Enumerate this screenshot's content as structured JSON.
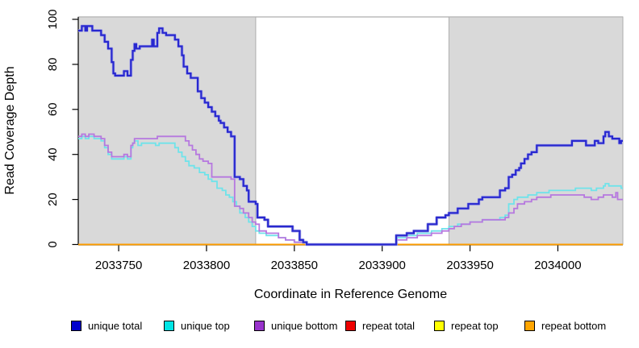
{
  "figure": {
    "x_axis_title": "Coordinate in Reference Genome",
    "y_axis_title": "Read Coverage Depth"
  },
  "chart_data": {
    "type": "line",
    "subtype": "step",
    "title": "",
    "xlabel": "Coordinate in Reference Genome",
    "ylabel": "Read Coverage Depth",
    "xlim": [
      2033727,
      2034037
    ],
    "ylim": [
      0,
      100
    ],
    "x_ticks": [
      2033750,
      2033800,
      2033850,
      2033900,
      2033950,
      2034000
    ],
    "y_ticks": [
      0,
      20,
      40,
      60,
      80,
      100
    ],
    "grid": false,
    "plot": {
      "band_fill": "#D9D9D9",
      "band_stroke": "#ADADAD",
      "axis_color": "#000000",
      "shaded_regions": [
        {
          "name": "left-gray-band",
          "x0": 2033727,
          "x1": 2033828
        },
        {
          "name": "right-gray-band",
          "x0": 2033938,
          "x1": 2034037
        }
      ],
      "white_gap": {
        "x0": 2033828,
        "x1": 2033938
      }
    },
    "legend": {
      "position": "bottom",
      "entries": [
        {
          "label": "unique total",
          "color": "#0000CC"
        },
        {
          "label": "unique top",
          "color": "#00E5E5"
        },
        {
          "label": "unique bottom",
          "color": "#9933CC"
        },
        {
          "label": "repeat total",
          "color": "#EE0000"
        },
        {
          "label": "repeat top",
          "color": "#FFFF00"
        },
        {
          "label": "repeat bottom",
          "color": "#FFA500"
        }
      ]
    },
    "series": [
      {
        "name": "repeat total",
        "color": "#DD0000",
        "width": 1.5,
        "points": [
          [
            2033727,
            0
          ],
          [
            2034037,
            0
          ]
        ]
      },
      {
        "name": "repeat top",
        "color": "#FFE800",
        "width": 1.5,
        "points": [
          [
            2033727,
            0
          ],
          [
            2034037,
            0
          ]
        ]
      },
      {
        "name": "repeat bottom",
        "color": "#FF9E00",
        "width": 1.8,
        "points": [
          [
            2033727,
            0
          ],
          [
            2034037,
            0
          ]
        ]
      },
      {
        "name": "unique top",
        "color": "#6FE3EA",
        "width": 1.8,
        "points": [
          [
            2033727,
            47
          ],
          [
            2033729,
            48
          ],
          [
            2033731,
            47
          ],
          [
            2033733,
            48
          ],
          [
            2033736,
            47
          ],
          [
            2033740,
            46
          ],
          [
            2033742,
            43
          ],
          [
            2033744,
            40
          ],
          [
            2033746,
            38
          ],
          [
            2033753,
            39
          ],
          [
            2033755,
            38
          ],
          [
            2033757,
            43
          ],
          [
            2033758,
            45
          ],
          [
            2033759,
            46
          ],
          [
            2033761,
            44
          ],
          [
            2033763,
            45
          ],
          [
            2033771,
            44
          ],
          [
            2033773,
            45
          ],
          [
            2033780,
            45
          ],
          [
            2033782,
            43
          ],
          [
            2033784,
            41
          ],
          [
            2033786,
            39
          ],
          [
            2033788,
            37
          ],
          [
            2033790,
            35
          ],
          [
            2033793,
            34
          ],
          [
            2033796,
            32
          ],
          [
            2033799,
            31
          ],
          [
            2033801,
            29
          ],
          [
            2033803,
            28
          ],
          [
            2033806,
            25
          ],
          [
            2033809,
            24
          ],
          [
            2033811,
            22
          ],
          [
            2033813,
            21
          ],
          [
            2033815,
            19
          ],
          [
            2033817,
            17
          ],
          [
            2033819,
            14
          ],
          [
            2033822,
            12
          ],
          [
            2033824,
            10
          ],
          [
            2033826,
            8
          ],
          [
            2033828,
            6
          ],
          [
            2033830,
            5
          ],
          [
            2033834,
            4
          ],
          [
            2033841,
            3
          ],
          [
            2033845,
            2
          ],
          [
            2033850,
            1
          ],
          [
            2033857,
            0
          ],
          [
            2033907,
            0
          ],
          [
            2033908,
            3
          ],
          [
            2033914,
            4
          ],
          [
            2033920,
            5
          ],
          [
            2033928,
            6
          ],
          [
            2033934,
            7
          ],
          [
            2033938,
            8
          ],
          [
            2033943,
            9
          ],
          [
            2033950,
            10
          ],
          [
            2033957,
            11
          ],
          [
            2033963,
            11
          ],
          [
            2033967,
            12
          ],
          [
            2033970,
            13
          ],
          [
            2033972,
            18
          ],
          [
            2033975,
            20
          ],
          [
            2033977,
            21
          ],
          [
            2033983,
            22
          ],
          [
            2033988,
            23
          ],
          [
            2033995,
            24
          ],
          [
            2034007,
            24
          ],
          [
            2034010,
            25
          ],
          [
            2034016,
            25
          ],
          [
            2034019,
            24
          ],
          [
            2034022,
            25
          ],
          [
            2034026,
            26
          ],
          [
            2034027,
            27
          ],
          [
            2034029,
            26
          ],
          [
            2034033,
            26
          ],
          [
            2034036,
            25
          ]
        ]
      },
      {
        "name": "unique bottom",
        "color": "#B678DF",
        "width": 1.8,
        "points": [
          [
            2033727,
            48
          ],
          [
            2033729,
            49
          ],
          [
            2033731,
            48
          ],
          [
            2033733,
            49
          ],
          [
            2033736,
            48
          ],
          [
            2033740,
            47
          ],
          [
            2033742,
            44
          ],
          [
            2033744,
            41
          ],
          [
            2033746,
            39
          ],
          [
            2033753,
            40
          ],
          [
            2033755,
            39
          ],
          [
            2033757,
            44
          ],
          [
            2033758,
            45
          ],
          [
            2033759,
            47
          ],
          [
            2033772,
            48
          ],
          [
            2033786,
            48
          ],
          [
            2033788,
            46
          ],
          [
            2033790,
            44
          ],
          [
            2033792,
            42
          ],
          [
            2033794,
            40
          ],
          [
            2033796,
            38
          ],
          [
            2033798,
            37
          ],
          [
            2033801,
            36
          ],
          [
            2033803,
            30
          ],
          [
            2033814,
            29
          ],
          [
            2033816,
            17
          ],
          [
            2033819,
            16
          ],
          [
            2033821,
            14
          ],
          [
            2033824,
            12
          ],
          [
            2033826,
            10
          ],
          [
            2033828,
            9
          ],
          [
            2033830,
            6
          ],
          [
            2033834,
            5
          ],
          [
            2033841,
            3
          ],
          [
            2033845,
            2
          ],
          [
            2033850,
            1
          ],
          [
            2033857,
            0
          ],
          [
            2033907,
            0
          ],
          [
            2033908,
            2
          ],
          [
            2033914,
            3
          ],
          [
            2033920,
            4
          ],
          [
            2033928,
            5
          ],
          [
            2033934,
            6
          ],
          [
            2033938,
            7
          ],
          [
            2033941,
            8
          ],
          [
            2033945,
            9
          ],
          [
            2033950,
            10
          ],
          [
            2033957,
            11
          ],
          [
            2033963,
            11
          ],
          [
            2033970,
            12
          ],
          [
            2033972,
            14
          ],
          [
            2033975,
            16
          ],
          [
            2033977,
            18
          ],
          [
            2033981,
            19
          ],
          [
            2033985,
            20
          ],
          [
            2033988,
            21
          ],
          [
            2033996,
            22
          ],
          [
            2034012,
            22
          ],
          [
            2034015,
            21
          ],
          [
            2034019,
            20
          ],
          [
            2034023,
            21
          ],
          [
            2034026,
            22
          ],
          [
            2034031,
            21
          ],
          [
            2034033,
            23
          ],
          [
            2034034,
            20
          ],
          [
            2034037,
            20
          ]
        ]
      },
      {
        "name": "unique total",
        "color": "#2828CF",
        "width": 2.2,
        "halo": "#A9A9E6",
        "points": [
          [
            2033727,
            95
          ],
          [
            2033729,
            97
          ],
          [
            2033731,
            95
          ],
          [
            2033732,
            97
          ],
          [
            2033735,
            95
          ],
          [
            2033740,
            93
          ],
          [
            2033742,
            90
          ],
          [
            2033744,
            87
          ],
          [
            2033746,
            81
          ],
          [
            2033747,
            76
          ],
          [
            2033748,
            75
          ],
          [
            2033753,
            77
          ],
          [
            2033755,
            75
          ],
          [
            2033757,
            82
          ],
          [
            2033758,
            86
          ],
          [
            2033759,
            89
          ],
          [
            2033760,
            87
          ],
          [
            2033762,
            88
          ],
          [
            2033769,
            91
          ],
          [
            2033770,
            88
          ],
          [
            2033772,
            94
          ],
          [
            2033773,
            96
          ],
          [
            2033775,
            94
          ],
          [
            2033777,
            93
          ],
          [
            2033780,
            93
          ],
          [
            2033782,
            91
          ],
          [
            2033784,
            88
          ],
          [
            2033786,
            84
          ],
          [
            2033787,
            79
          ],
          [
            2033789,
            76
          ],
          [
            2033791,
            74
          ],
          [
            2033795,
            68
          ],
          [
            2033797,
            65
          ],
          [
            2033799,
            63
          ],
          [
            2033801,
            61
          ],
          [
            2033803,
            59
          ],
          [
            2033805,
            57
          ],
          [
            2033807,
            55
          ],
          [
            2033808,
            54
          ],
          [
            2033810,
            52
          ],
          [
            2033812,
            50
          ],
          [
            2033814,
            48
          ],
          [
            2033816,
            30
          ],
          [
            2033819,
            29
          ],
          [
            2033821,
            26
          ],
          [
            2033823,
            24
          ],
          [
            2033824,
            19
          ],
          [
            2033828,
            18
          ],
          [
            2033829,
            12
          ],
          [
            2033833,
            11
          ],
          [
            2033835,
            8
          ],
          [
            2033847,
            8
          ],
          [
            2033849,
            6
          ],
          [
            2033853,
            2
          ],
          [
            2033855,
            1
          ],
          [
            2033857,
            0
          ],
          [
            2033907,
            0
          ],
          [
            2033908,
            4
          ],
          [
            2033914,
            5
          ],
          [
            2033918,
            6
          ],
          [
            2033926,
            9
          ],
          [
            2033931,
            12
          ],
          [
            2033936,
            13
          ],
          [
            2033938,
            14
          ],
          [
            2033943,
            16
          ],
          [
            2033949,
            18
          ],
          [
            2033955,
            20
          ],
          [
            2033957,
            21
          ],
          [
            2033967,
            24
          ],
          [
            2033970,
            25
          ],
          [
            2033972,
            30
          ],
          [
            2033974,
            31
          ],
          [
            2033976,
            33
          ],
          [
            2033978,
            34
          ],
          [
            2033979,
            36
          ],
          [
            2033981,
            38
          ],
          [
            2033983,
            40
          ],
          [
            2033985,
            41
          ],
          [
            2033988,
            44
          ],
          [
            2034007,
            44
          ],
          [
            2034008,
            46
          ],
          [
            2034015,
            46
          ],
          [
            2034016,
            44
          ],
          [
            2034019,
            44
          ],
          [
            2034021,
            46
          ],
          [
            2034023,
            45
          ],
          [
            2034026,
            48
          ],
          [
            2034027,
            50
          ],
          [
            2034029,
            48
          ],
          [
            2034031,
            47
          ],
          [
            2034035,
            45
          ],
          [
            2034036,
            46
          ]
        ]
      }
    ]
  }
}
